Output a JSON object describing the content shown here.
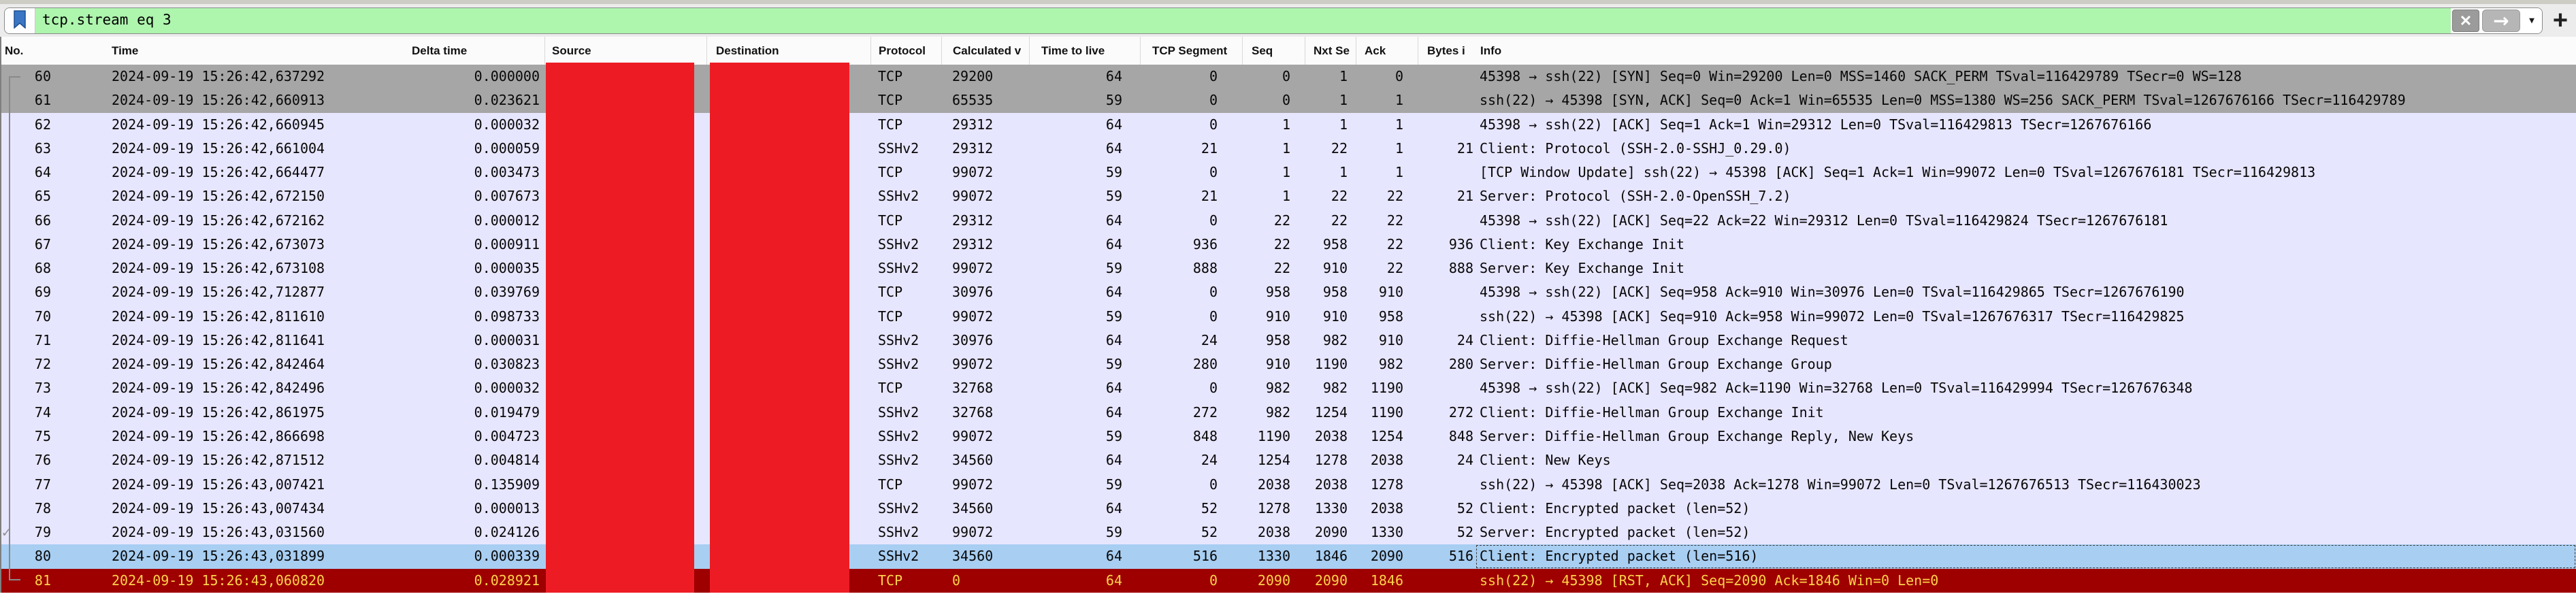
{
  "filter_bar": {
    "query": "tcp.stream eq 3",
    "clear_label": "✕",
    "apply_label": "→",
    "dropdown_label": "▼",
    "add_label": "+",
    "valid_filter_bg": "#aef5ae"
  },
  "columns": [
    {
      "key": "no",
      "label": "No."
    },
    {
      "key": "time",
      "label": "Time"
    },
    {
      "key": "delta",
      "label": "Delta time"
    },
    {
      "key": "src",
      "label": "Source"
    },
    {
      "key": "dst",
      "label": "Destination"
    },
    {
      "key": "protocol",
      "label": "Protocol"
    },
    {
      "key": "win",
      "label": "Calculated v"
    },
    {
      "key": "ttl",
      "label": "Time to live"
    },
    {
      "key": "seg",
      "label": "TCP Segment"
    },
    {
      "key": "seq",
      "label": "Seq"
    },
    {
      "key": "nxt",
      "label": "Nxt Se"
    },
    {
      "key": "ack",
      "label": "Ack"
    },
    {
      "key": "bytes",
      "label": "Bytes i"
    },
    {
      "key": "info",
      "label": "Info"
    }
  ],
  "redactions": {
    "color": "#ed1c24",
    "columns": [
      "Source",
      "Destination"
    ]
  },
  "colors": {
    "row_syn_gray": "#a6a6a6",
    "row_default_lavender": "#e7e6ff",
    "row_selected_blue": "#a8cef2",
    "row_rst_bg": "#9e0000",
    "row_rst_text": "#ffd24a"
  },
  "related_packets": {
    "first_row": "60",
    "last_row": "81",
    "checked_row": "79"
  },
  "rows": [
    {
      "no": "60",
      "time": "2024-09-19 15:26:42,637292",
      "delta": "0.000000",
      "protocol": "TCP",
      "win": "29200",
      "ttl": "64",
      "seg": "0",
      "seq": "0",
      "nxt": "1",
      "ack": "0",
      "bytes": "",
      "info": "45398 → ssh(22) [SYN] Seq=0 Win=29200 Len=0 MSS=1460 SACK_PERM TSval=116429789 TSecr=0 WS=128",
      "style": "r-gray"
    },
    {
      "no": "61",
      "time": "2024-09-19 15:26:42,660913",
      "delta": "0.023621",
      "protocol": "TCP",
      "win": "65535",
      "ttl": "59",
      "seg": "0",
      "seq": "0",
      "nxt": "1",
      "ack": "1",
      "bytes": "",
      "info": "ssh(22) → 45398 [SYN, ACK] Seq=0 Ack=1 Win=65535 Len=0 MSS=1380 WS=256 SACK_PERM TSval=1267676166 TSecr=116429789",
      "style": "r-gray"
    },
    {
      "no": "62",
      "time": "2024-09-19 15:26:42,660945",
      "delta": "0.000032",
      "protocol": "TCP",
      "win": "29312",
      "ttl": "64",
      "seg": "0",
      "seq": "1",
      "nxt": "1",
      "ack": "1",
      "bytes": "",
      "info": "45398 → ssh(22) [ACK] Seq=1 Ack=1 Win=29312 Len=0 TSval=116429813 TSecr=1267676166",
      "style": "r-lav"
    },
    {
      "no": "63",
      "time": "2024-09-19 15:26:42,661004",
      "delta": "0.000059",
      "protocol": "SSHv2",
      "win": "29312",
      "ttl": "64",
      "seg": "21",
      "seq": "1",
      "nxt": "22",
      "ack": "1",
      "bytes": "21",
      "info": "Client: Protocol (SSH-2.0-SSHJ_0.29.0)",
      "style": "r-lav"
    },
    {
      "no": "64",
      "time": "2024-09-19 15:26:42,664477",
      "delta": "0.003473",
      "protocol": "TCP",
      "win": "99072",
      "ttl": "59",
      "seg": "0",
      "seq": "1",
      "nxt": "1",
      "ack": "1",
      "bytes": "",
      "info": "[TCP Window Update] ssh(22) → 45398 [ACK] Seq=1 Ack=1 Win=99072 Len=0 TSval=1267676181 TSecr=116429813",
      "style": "r-lav"
    },
    {
      "no": "65",
      "time": "2024-09-19 15:26:42,672150",
      "delta": "0.007673",
      "protocol": "SSHv2",
      "win": "99072",
      "ttl": "59",
      "seg": "21",
      "seq": "1",
      "nxt": "22",
      "ack": "22",
      "bytes": "21",
      "info": "Server: Protocol (SSH-2.0-OpenSSH_7.2)",
      "style": "r-lav"
    },
    {
      "no": "66",
      "time": "2024-09-19 15:26:42,672162",
      "delta": "0.000012",
      "protocol": "TCP",
      "win": "29312",
      "ttl": "64",
      "seg": "0",
      "seq": "22",
      "nxt": "22",
      "ack": "22",
      "bytes": "",
      "info": "45398 → ssh(22) [ACK] Seq=22 Ack=22 Win=29312 Len=0 TSval=116429824 TSecr=1267676181",
      "style": "r-lav"
    },
    {
      "no": "67",
      "time": "2024-09-19 15:26:42,673073",
      "delta": "0.000911",
      "protocol": "SSHv2",
      "win": "29312",
      "ttl": "64",
      "seg": "936",
      "seq": "22",
      "nxt": "958",
      "ack": "22",
      "bytes": "936",
      "info": "Client: Key Exchange Init",
      "style": "r-lav"
    },
    {
      "no": "68",
      "time": "2024-09-19 15:26:42,673108",
      "delta": "0.000035",
      "protocol": "SSHv2",
      "win": "99072",
      "ttl": "59",
      "seg": "888",
      "seq": "22",
      "nxt": "910",
      "ack": "22",
      "bytes": "888",
      "info": "Server: Key Exchange Init",
      "style": "r-lav"
    },
    {
      "no": "69",
      "time": "2024-09-19 15:26:42,712877",
      "delta": "0.039769",
      "protocol": "TCP",
      "win": "30976",
      "ttl": "64",
      "seg": "0",
      "seq": "958",
      "nxt": "958",
      "ack": "910",
      "bytes": "",
      "info": "45398 → ssh(22) [ACK] Seq=958 Ack=910 Win=30976 Len=0 TSval=116429865 TSecr=1267676190",
      "style": "r-lav"
    },
    {
      "no": "70",
      "time": "2024-09-19 15:26:42,811610",
      "delta": "0.098733",
      "protocol": "TCP",
      "win": "99072",
      "ttl": "59",
      "seg": "0",
      "seq": "910",
      "nxt": "910",
      "ack": "958",
      "bytes": "",
      "info": "ssh(22) → 45398 [ACK] Seq=910 Ack=958 Win=99072 Len=0 TSval=1267676317 TSecr=116429825",
      "style": "r-lav"
    },
    {
      "no": "71",
      "time": "2024-09-19 15:26:42,811641",
      "delta": "0.000031",
      "protocol": "SSHv2",
      "win": "30976",
      "ttl": "64",
      "seg": "24",
      "seq": "958",
      "nxt": "982",
      "ack": "910",
      "bytes": "24",
      "info": "Client: Diffie-Hellman Group Exchange Request",
      "style": "r-lav"
    },
    {
      "no": "72",
      "time": "2024-09-19 15:26:42,842464",
      "delta": "0.030823",
      "protocol": "SSHv2",
      "win": "99072",
      "ttl": "59",
      "seg": "280",
      "seq": "910",
      "nxt": "1190",
      "ack": "982",
      "bytes": "280",
      "info": "Server: Diffie-Hellman Group Exchange Group",
      "style": "r-lav"
    },
    {
      "no": "73",
      "time": "2024-09-19 15:26:42,842496",
      "delta": "0.000032",
      "protocol": "TCP",
      "win": "32768",
      "ttl": "64",
      "seg": "0",
      "seq": "982",
      "nxt": "982",
      "ack": "1190",
      "bytes": "",
      "info": "45398 → ssh(22) [ACK] Seq=982 Ack=1190 Win=32768 Len=0 TSval=116429994 TSecr=1267676348",
      "style": "r-lav"
    },
    {
      "no": "74",
      "time": "2024-09-19 15:26:42,861975",
      "delta": "0.019479",
      "protocol": "SSHv2",
      "win": "32768",
      "ttl": "64",
      "seg": "272",
      "seq": "982",
      "nxt": "1254",
      "ack": "1190",
      "bytes": "272",
      "info": "Client: Diffie-Hellman Group Exchange Init",
      "style": "r-lav"
    },
    {
      "no": "75",
      "time": "2024-09-19 15:26:42,866698",
      "delta": "0.004723",
      "protocol": "SSHv2",
      "win": "99072",
      "ttl": "59",
      "seg": "848",
      "seq": "1190",
      "nxt": "2038",
      "ack": "1254",
      "bytes": "848",
      "info": "Server: Diffie-Hellman Group Exchange Reply, New Keys",
      "style": "r-lav"
    },
    {
      "no": "76",
      "time": "2024-09-19 15:26:42,871512",
      "delta": "0.004814",
      "protocol": "SSHv2",
      "win": "34560",
      "ttl": "64",
      "seg": "24",
      "seq": "1254",
      "nxt": "1278",
      "ack": "2038",
      "bytes": "24",
      "info": "Client: New Keys",
      "style": "r-lav"
    },
    {
      "no": "77",
      "time": "2024-09-19 15:26:43,007421",
      "delta": "0.135909",
      "protocol": "TCP",
      "win": "99072",
      "ttl": "59",
      "seg": "0",
      "seq": "2038",
      "nxt": "2038",
      "ack": "1278",
      "bytes": "",
      "info": "ssh(22) → 45398 [ACK] Seq=2038 Ack=1278 Win=99072 Len=0 TSval=1267676513 TSecr=116430023",
      "style": "r-lav"
    },
    {
      "no": "78",
      "time": "2024-09-19 15:26:43,007434",
      "delta": "0.000013",
      "protocol": "SSHv2",
      "win": "34560",
      "ttl": "64",
      "seg": "52",
      "seq": "1278",
      "nxt": "1330",
      "ack": "2038",
      "bytes": "52",
      "info": "Client: Encrypted packet (len=52)",
      "style": "r-lav"
    },
    {
      "no": "79",
      "time": "2024-09-19 15:26:43,031560",
      "delta": "0.024126",
      "protocol": "SSHv2",
      "win": "99072",
      "ttl": "59",
      "seg": "52",
      "seq": "2038",
      "nxt": "2090",
      "ack": "1330",
      "bytes": "52",
      "info": "Server: Encrypted packet (len=52)",
      "style": "r-lav",
      "check": "✓"
    },
    {
      "no": "80",
      "time": "2024-09-19 15:26:43,031899",
      "delta": "0.000339",
      "protocol": "SSHv2",
      "win": "34560",
      "ttl": "64",
      "seg": "516",
      "seq": "1330",
      "nxt": "1846",
      "ack": "2090",
      "bytes": "516",
      "info": "Client: Encrypted packet (len=516)",
      "style": "r-sel"
    },
    {
      "no": "81",
      "time": "2024-09-19 15:26:43,060820",
      "delta": "0.028921",
      "protocol": "TCP",
      "win": "0",
      "ttl": "64",
      "seg": "0",
      "seq": "2090",
      "nxt": "2090",
      "ack": "1846",
      "bytes": "",
      "info": "ssh(22) → 45398 [RST, ACK] Seq=2090 Ack=1846 Win=0 Len=0",
      "style": "r-rst"
    }
  ]
}
